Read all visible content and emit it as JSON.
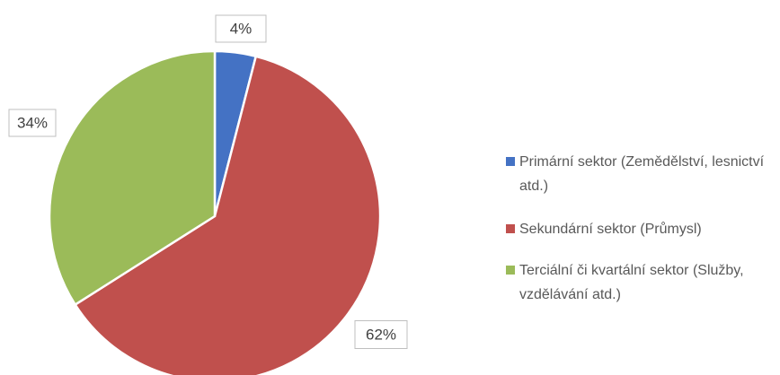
{
  "chart_data": {
    "type": "pie",
    "categories": [
      "Primární sektor (Zemědělství, lesnictví atd.)",
      "Sekundární sektor (Průmysl)",
      "Terciální či kvartální sektor (Služby, vzdělávání atd.)"
    ],
    "values": [
      4,
      62,
      34
    ],
    "value_labels": [
      "4%",
      "62%",
      "34%"
    ],
    "colors": [
      "#4472c4",
      "#c0504d",
      "#9bbb59"
    ]
  }
}
